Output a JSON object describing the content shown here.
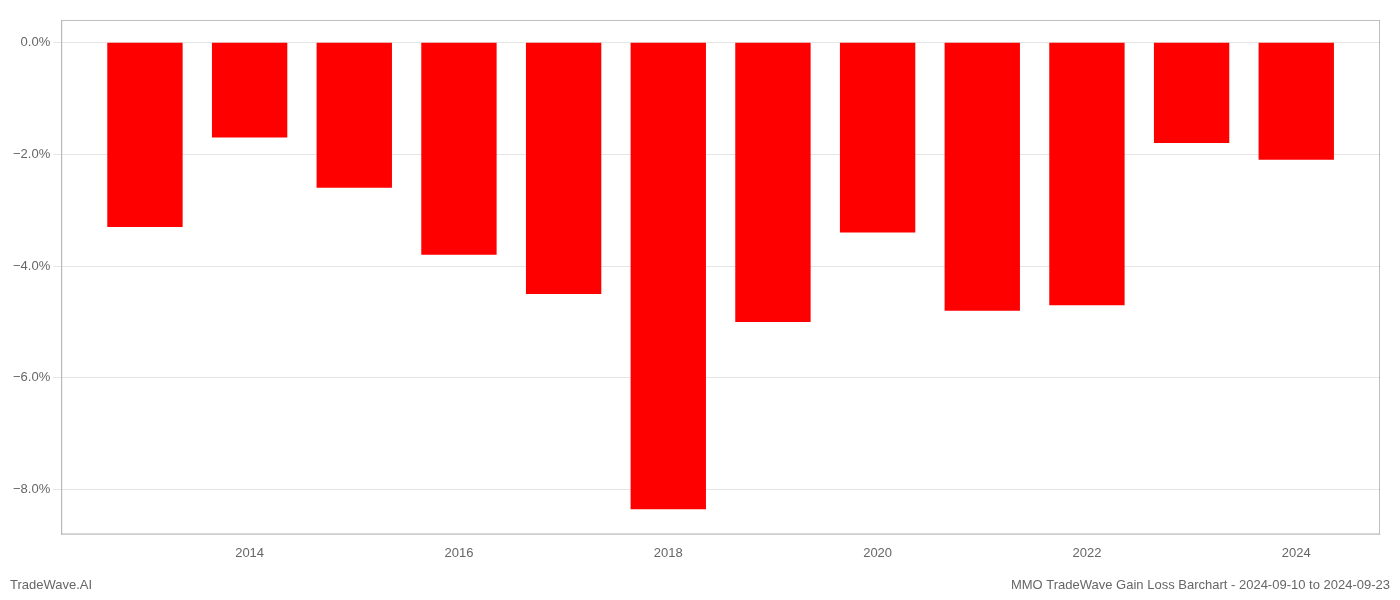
{
  "chart_data": {
    "type": "bar",
    "x": [
      2013,
      2014,
      2015,
      2016,
      2017,
      2018,
      2019,
      2020,
      2021,
      2022,
      2023,
      2024
    ],
    "values": [
      -3.3,
      -1.7,
      -2.6,
      -3.8,
      -4.5,
      -8.35,
      -5.0,
      -3.4,
      -4.8,
      -4.7,
      -1.8,
      -2.1
    ],
    "color": "#ff0000",
    "xlim": [
      2012.2,
      2024.8
    ],
    "xticks": [
      2014,
      2016,
      2018,
      2020,
      2022,
      2024
    ],
    "ylim": [
      -8.8,
      0.4
    ],
    "yticks": [
      {
        "value": 0.0,
        "label": "0.0%"
      },
      {
        "value": -2.0,
        "label": "−2.0%"
      },
      {
        "value": -4.0,
        "label": "−4.0%"
      },
      {
        "value": -6.0,
        "label": "−6.0%"
      },
      {
        "value": -8.0,
        "label": "−8.0%"
      }
    ],
    "grid": true,
    "annotations": [
      "TradeWave.AI",
      "MMO TradeWave Gain Loss Barchart - 2024-09-10 to 2024-09-23"
    ]
  }
}
